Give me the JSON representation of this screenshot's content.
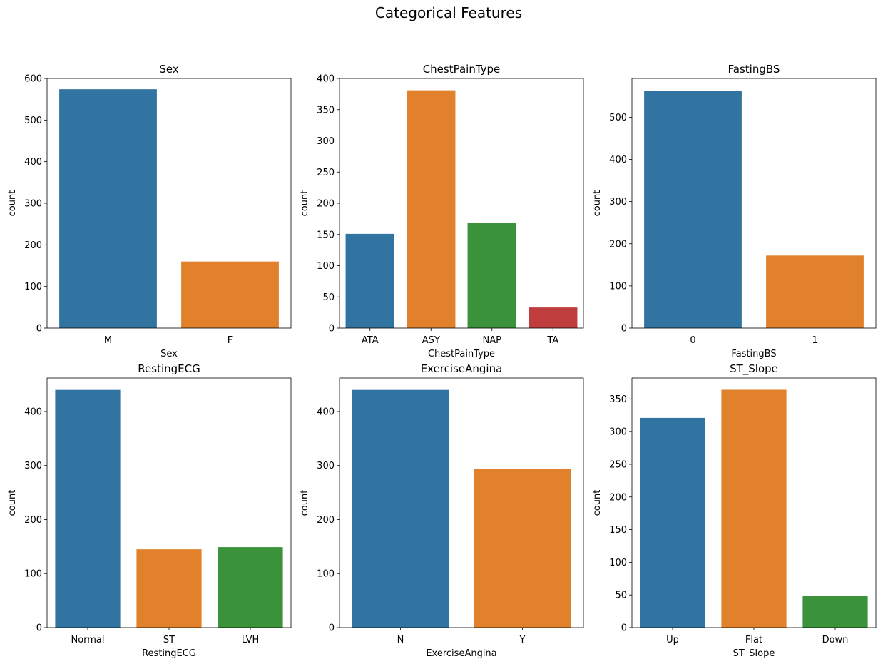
{
  "figure_title": "Categorical Features",
  "palette": [
    "#3274a1",
    "#e1812c",
    "#3a923a",
    "#c03d3e"
  ],
  "chart_data": [
    {
      "type": "bar",
      "title": "Sex",
      "xlabel": "Sex",
      "ylabel": "count",
      "categories": [
        "M",
        "F"
      ],
      "values": [
        574,
        160
      ],
      "ylim": [
        0,
        600
      ],
      "yticks": [
        0,
        100,
        200,
        300,
        400,
        500,
        600
      ]
    },
    {
      "type": "bar",
      "title": "ChestPainType",
      "xlabel": "ChestPainType",
      "ylabel": "count",
      "categories": [
        "ATA",
        "ASY",
        "NAP",
        "TA"
      ],
      "values": [
        151,
        381,
        168,
        33
      ],
      "ylim": [
        0,
        400
      ],
      "yticks": [
        0,
        50,
        100,
        150,
        200,
        250,
        300,
        350,
        400
      ]
    },
    {
      "type": "bar",
      "title": "FastingBS",
      "xlabel": "FastingBS",
      "ylabel": "count",
      "categories": [
        "0",
        "1"
      ],
      "values": [
        563,
        172
      ],
      "ylim": [
        0,
        592
      ],
      "yticks": [
        0,
        100,
        200,
        300,
        400,
        500
      ]
    },
    {
      "type": "bar",
      "title": "RestingECG",
      "xlabel": "RestingECG",
      "ylabel": "count",
      "categories": [
        "Normal",
        "ST",
        "LVH"
      ],
      "values": [
        440,
        145,
        149
      ],
      "ylim": [
        0,
        462
      ],
      "yticks": [
        0,
        100,
        200,
        300,
        400
      ]
    },
    {
      "type": "bar",
      "title": "ExerciseAngina",
      "xlabel": "ExerciseAngina",
      "ylabel": "count",
      "categories": [
        "N",
        "Y"
      ],
      "values": [
        440,
        294
      ],
      "ylim": [
        0,
        462
      ],
      "yticks": [
        0,
        100,
        200,
        300,
        400
      ]
    },
    {
      "type": "bar",
      "title": "ST_Slope",
      "xlabel": "ST_Slope",
      "ylabel": "count",
      "categories": [
        "Up",
        "Flat",
        "Down"
      ],
      "values": [
        321,
        364,
        48
      ],
      "ylim": [
        0,
        382
      ],
      "yticks": [
        0,
        50,
        100,
        150,
        200,
        250,
        300,
        350
      ]
    }
  ]
}
